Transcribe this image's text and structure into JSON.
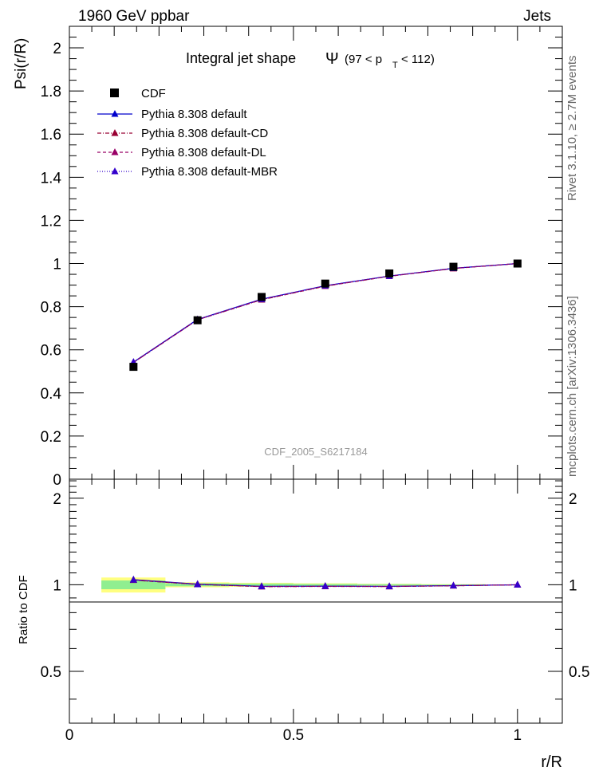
{
  "header": {
    "left": "1960 GeV ppbar",
    "right": "Jets"
  },
  "side_labels": {
    "rivet": "Rivet 3.1.10, ≥ 2.7M events",
    "mcplots": "mcplots.cern.ch [arXiv:1306.3436]"
  },
  "chart_data": [
    {
      "type": "line",
      "title_main": "Integral jet shape",
      "title_psi": "Ψ",
      "title_range_open": "(97 < p",
      "title_range_sub": "T",
      "title_range_close": "< 112)",
      "ylabel": "Psi(r/R)",
      "watermark": "CDF_2005_S6217184",
      "xlim": [
        0,
        1.1
      ],
      "ylim": [
        0,
        2.1
      ],
      "yticks": [
        0,
        0.2,
        0.4,
        0.6,
        0.8,
        1,
        1.2,
        1.4,
        1.6,
        1.8,
        2
      ],
      "ytick_labels": [
        "0",
        "0.2",
        "0.4",
        "0.6",
        "0.8",
        "1",
        "1.2",
        "1.4",
        "1.6",
        "1.8",
        "2"
      ],
      "x": [
        0.143,
        0.286,
        0.429,
        0.571,
        0.714,
        0.857,
        1.0
      ],
      "data": {
        "name": "CDF",
        "values": [
          0.521,
          0.737,
          0.845,
          0.907,
          0.954,
          0.985,
          1.0
        ],
        "errors": [
          0.01,
          0.008,
          0.007,
          0.006,
          0.004,
          0.003,
          0.0
        ]
      },
      "series": [
        {
          "name": "Pythia 8.308 default",
          "color": "#0000cc",
          "dash": "",
          "values": [
            0.543,
            0.741,
            0.835,
            0.897,
            0.942,
            0.978,
            1.0
          ]
        },
        {
          "name": "Pythia 8.308 default-CD",
          "color": "#990033",
          "dash": "5,2,1,2",
          "values": [
            0.541,
            0.739,
            0.832,
            0.895,
            0.941,
            0.977,
            1.0
          ]
        },
        {
          "name": "Pythia 8.308 default-DL",
          "color": "#990066",
          "dash": "4,3",
          "values": [
            0.541,
            0.74,
            0.833,
            0.896,
            0.941,
            0.977,
            1.0
          ]
        },
        {
          "name": "Pythia 8.308 default-MBR",
          "color": "#3300cc",
          "dash": "1,2",
          "values": [
            0.542,
            0.739,
            0.834,
            0.897,
            0.942,
            0.978,
            1.0
          ]
        }
      ]
    },
    {
      "type": "line",
      "ylabel": "Ratio to CDF",
      "xlabel": "r/R",
      "xlim": [
        0,
        1.1
      ],
      "ylim": [
        0.33,
        2.33
      ],
      "yticks": [
        0.5,
        1,
        2
      ],
      "ytick_labels": [
        "0.5",
        "1",
        "2"
      ],
      "xticks": [
        0,
        0.5,
        1
      ],
      "xtick_labels": [
        "0",
        "0.5",
        "1"
      ],
      "bins": [
        [
          0.0714,
          0.2143
        ],
        [
          0.2143,
          0.3571
        ],
        [
          0.3571,
          0.5
        ],
        [
          0.5,
          0.6429
        ],
        [
          0.6429,
          0.7857
        ],
        [
          0.7857,
          0.9286
        ],
        [
          0.9286,
          1.0714
        ]
      ],
      "band_inner": [
        0.035,
        0.012,
        0.01,
        0.007,
        0.005,
        0.003,
        0.0
      ],
      "band_outer": [
        0.06,
        0.02,
        0.016,
        0.012,
        0.008,
        0.005,
        0.0
      ],
      "x": [
        0.143,
        0.286,
        0.429,
        0.571,
        0.714,
        0.857,
        1.0
      ],
      "series": [
        {
          "name": "Pythia 8.308 default",
          "color": "#0000cc",
          "values": [
            1.042,
            1.005,
            0.988,
            0.989,
            0.988,
            0.993,
            1.0
          ]
        },
        {
          "name": "Pythia 8.308 default-CD",
          "color": "#990033",
          "values": [
            1.038,
            1.003,
            0.985,
            0.987,
            0.986,
            0.992,
            1.0
          ]
        },
        {
          "name": "Pythia 8.308 default-DL",
          "color": "#990066",
          "values": [
            1.039,
            1.004,
            0.986,
            0.988,
            0.986,
            0.992,
            1.0
          ]
        },
        {
          "name": "Pythia 8.308 default-MBR",
          "color": "#3300cc",
          "values": [
            1.04,
            1.003,
            0.987,
            0.989,
            0.987,
            0.993,
            1.0
          ]
        }
      ]
    }
  ]
}
